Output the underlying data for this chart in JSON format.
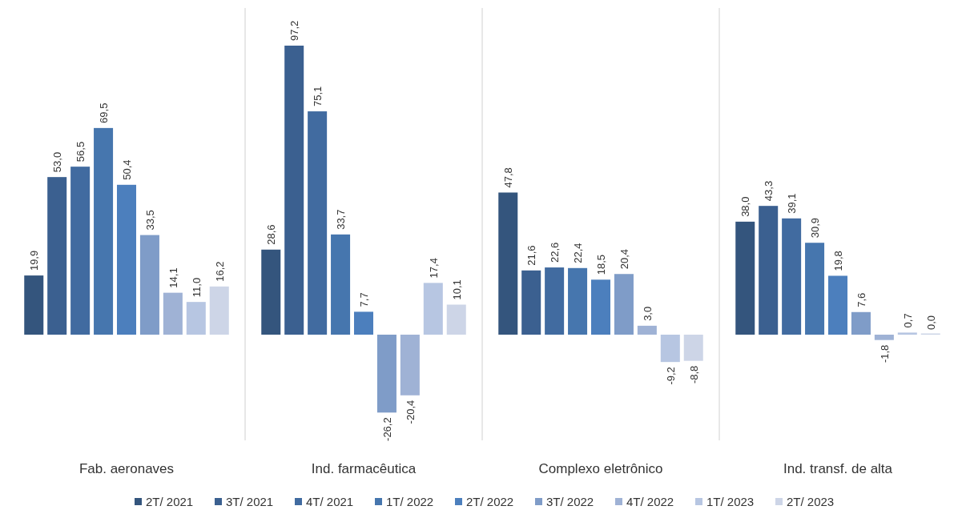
{
  "chart_data": {
    "type": "bar",
    "categories": [
      "Fab. aeronaves",
      "Ind. farmacêutica",
      "Complexo eletrônico",
      "Ind. transf. de alta"
    ],
    "legend": "bottom",
    "series": [
      {
        "name": "2T/ 2021",
        "color": "#34557d",
        "values": [
          19.9,
          28.6,
          47.8,
          38.0
        ],
        "value_labels": [
          "19,9",
          "28,6",
          "47,8",
          "38,0"
        ]
      },
      {
        "name": "3T/ 2021",
        "color": "#3b6090",
        "values": [
          53.0,
          97.2,
          21.6,
          43.3
        ],
        "value_labels": [
          "53,0",
          "97,2",
          "21,6",
          "43,3"
        ]
      },
      {
        "name": "4T/ 2021",
        "color": "#416ba0",
        "values": [
          56.5,
          75.1,
          22.6,
          39.1
        ],
        "value_labels": [
          "56,5",
          "75,1",
          "22,6",
          "39,1"
        ]
      },
      {
        "name": "1T/ 2022",
        "color": "#4676ae",
        "values": [
          69.5,
          33.7,
          22.4,
          30.9
        ],
        "value_labels": [
          "69,5",
          "33,7",
          "22,4",
          "30,9"
        ]
      },
      {
        "name": "2T/ 2022",
        "color": "#4c7fbd",
        "values": [
          50.4,
          7.7,
          18.5,
          19.8
        ],
        "value_labels": [
          "50,4",
          "7,7",
          "18,5",
          "19,8"
        ]
      },
      {
        "name": "3T/ 2022",
        "color": "#7f9cc8",
        "values": [
          33.5,
          -26.2,
          20.4,
          7.6
        ],
        "value_labels": [
          "33,5",
          "-26,2",
          "20,4",
          "7,6"
        ]
      },
      {
        "name": "4T/ 2022",
        "color": "#9fb2d5",
        "values": [
          14.1,
          -20.4,
          3.0,
          -1.8
        ],
        "value_labels": [
          "14,1",
          "-20,4",
          "3,0",
          "-1,8"
        ]
      },
      {
        "name": "1T/ 2023",
        "color": "#b7c6e2",
        "values": [
          11.0,
          17.4,
          -9.2,
          0.7
        ],
        "value_labels": [
          "11,0",
          "17,4",
          "-9,2",
          "0,7"
        ]
      },
      {
        "name": "2T/ 2023",
        "color": "#cdd5e7",
        "values": [
          16.2,
          10.1,
          -8.8,
          0.0
        ],
        "value_labels": [
          "16,2",
          "10,1",
          "-8,8",
          "0,0"
        ]
      }
    ]
  }
}
